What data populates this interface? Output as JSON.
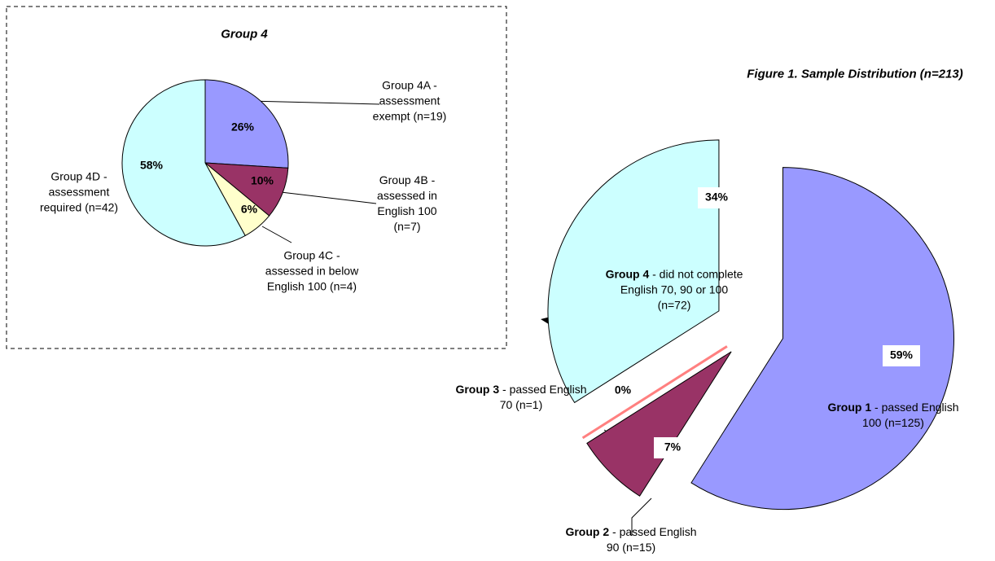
{
  "chart_data": [
    {
      "type": "pie",
      "title": "Figure 1. Sample Distribution (n=213)",
      "categories": [
        "Group 1",
        "Group 2",
        "Group 3",
        "Group 4"
      ],
      "descriptions": [
        "- passed English 100 (n=125)",
        "- passed English 90 (n=15)",
        "- passed English 70 (n=1)",
        "- did not complete English 70, 90 or 100 (n=72)"
      ],
      "values": [
        59,
        7,
        0,
        34
      ],
      "value_labels": [
        "59%",
        "7%",
        "0%",
        "34%"
      ],
      "colors": [
        "#9999ff",
        "#993366",
        "#ff8080",
        "#ccffff"
      ]
    },
    {
      "type": "pie",
      "title": "Group 4",
      "categories": [
        "Group 4A - assessment exempt (n=19)",
        "Group 4B - assessed in English 100 (n=7)",
        "Group 4C - assessed in below English 100 (n=4)",
        "Group 4D - assessment required (n=42)"
      ],
      "values": [
        26,
        10,
        6,
        58
      ],
      "value_labels": [
        "26%",
        "10%",
        "6%",
        "58%"
      ],
      "colors": [
        "#9999ff",
        "#993366",
        "#ffffcc",
        "#ccffff"
      ]
    }
  ]
}
